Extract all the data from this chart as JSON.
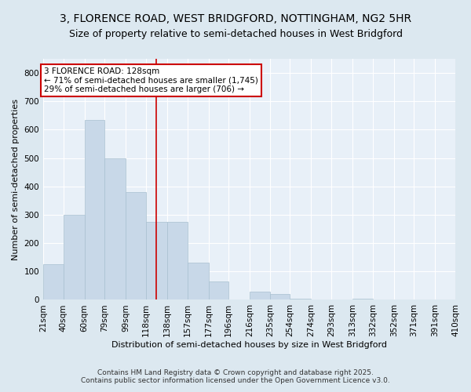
{
  "title": "3, FLORENCE ROAD, WEST BRIDGFORD, NOTTINGHAM, NG2 5HR",
  "subtitle": "Size of property relative to semi-detached houses in West Bridgford",
  "xlabel": "Distribution of semi-detached houses by size in West Bridgford",
  "ylabel": "Number of semi-detached properties",
  "footer_line1": "Contains HM Land Registry data © Crown copyright and database right 2025.",
  "footer_line2": "Contains public sector information licensed under the Open Government Licence v3.0.",
  "bar_edges": [
    21,
    40,
    60,
    79,
    99,
    118,
    138,
    157,
    177,
    196,
    216,
    235,
    254,
    274,
    293,
    313,
    332,
    352,
    371,
    391,
    410
  ],
  "bar_heights": [
    125,
    300,
    635,
    500,
    380,
    275,
    275,
    130,
    65,
    0,
    30,
    20,
    5,
    0,
    0,
    5,
    0,
    0,
    0,
    0
  ],
  "bar_color": "#c8d8e8",
  "bar_edgecolor": "#a8c0d0",
  "property_value": 128,
  "vline_color": "#cc0000",
  "annotation_title": "3 FLORENCE ROAD: 128sqm",
  "annotation_line1": "← 71% of semi-detached houses are smaller (1,745)",
  "annotation_line2": "29% of semi-detached houses are larger (706) →",
  "annotation_box_facecolor": "#ffffff",
  "annotation_box_edgecolor": "#cc0000",
  "ylim": [
    0,
    850
  ],
  "yticks": [
    0,
    100,
    200,
    300,
    400,
    500,
    600,
    700,
    800
  ],
  "bg_color": "#dce8f0",
  "plot_bg_color": "#e8f0f8",
  "title_fontsize": 10,
  "subtitle_fontsize": 9,
  "xlabel_fontsize": 8,
  "ylabel_fontsize": 8,
  "tick_fontsize": 7.5,
  "annotation_fontsize": 7.5,
  "footer_fontsize": 6.5
}
